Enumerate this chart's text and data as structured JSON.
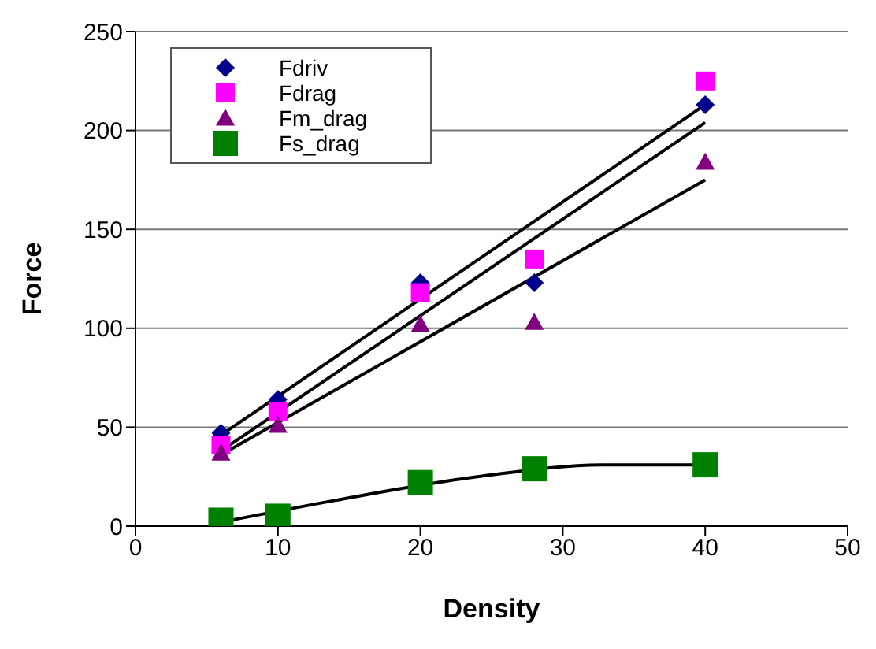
{
  "chart_data": {
    "type": "scatter",
    "xlabel": "Density",
    "ylabel": "Force",
    "xlim": [
      0,
      50
    ],
    "xticks": [
      0,
      10,
      20,
      30,
      40,
      50
    ],
    "ylim": [
      0,
      250
    ],
    "yticks": [
      0,
      50,
      100,
      150,
      200,
      250
    ],
    "grid": "y",
    "legend": "top left",
    "series": [
      {
        "name": "Fdriv",
        "color": "#00008b",
        "marker": "diamond",
        "x": [
          6,
          10,
          20,
          28,
          40
        ],
        "values": [
          47,
          64,
          123,
          123,
          213
        ]
      },
      {
        "name": "Fdrag",
        "color": "#ff00ff",
        "marker": "square",
        "x": [
          6,
          10,
          20,
          28,
          40
        ],
        "values": [
          41,
          58,
          118,
          135,
          225
        ]
      },
      {
        "name": "Fm_drag",
        "color": "#800080",
        "marker": "triangle",
        "x": [
          6,
          10,
          20,
          28,
          40
        ],
        "values": [
          37,
          51,
          102,
          103,
          184
        ]
      },
      {
        "name": "Fs_drag",
        "color": "#008000",
        "marker": "square",
        "x": [
          6,
          10,
          20,
          28,
          40
        ],
        "values": [
          3,
          5,
          22,
          29,
          31
        ]
      },
      {
        "type": "line",
        "color": "#000000",
        "marker": "none",
        "x": [
          6,
          40
        ],
        "values": [
          46,
          213
        ]
      },
      {
        "type": "line",
        "color": "#000000",
        "marker": "none",
        "x": [
          6,
          40
        ],
        "values": [
          38,
          204
        ]
      },
      {
        "type": "line",
        "color": "#000000",
        "marker": "none",
        "x": [
          6,
          40
        ],
        "values": [
          36,
          175
        ]
      },
      {
        "type": "line",
        "color": "#000000",
        "marker": "none",
        "x": [
          6,
          14,
          24,
          33,
          40
        ],
        "values": [
          2,
          13,
          25,
          31,
          31
        ]
      }
    ]
  }
}
